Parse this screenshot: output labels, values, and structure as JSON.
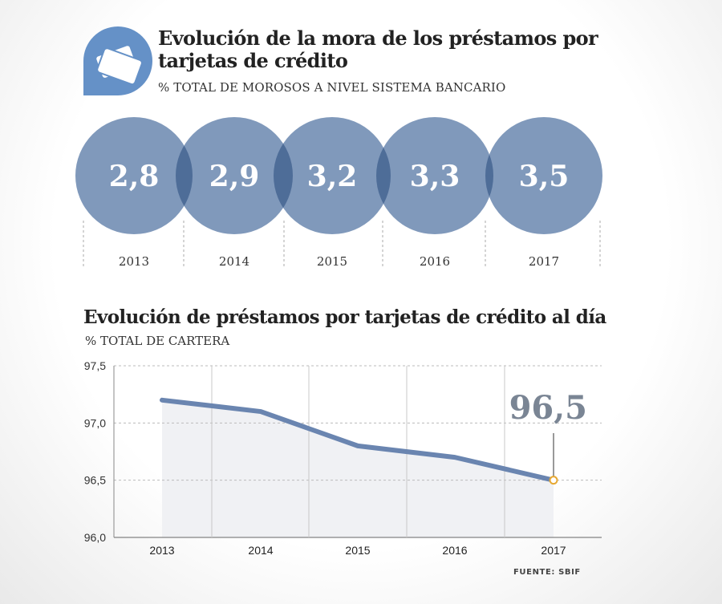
{
  "header": {
    "icon": "credit-cards-icon",
    "title": "Evolución de la mora de los préstamos por tarjetas de crédito",
    "subtitle": "% TOTAL DE MOROSOS A NIVEL SISTEMA BANCARIO"
  },
  "section2": {
    "title": "Evolución de préstamos por tarjetas de crédito al día",
    "subtitle": "% TOTAL DE CARTERA"
  },
  "source": "FUENTE: SBIF",
  "colors": {
    "circle": "#8099bb",
    "overlap": "#4e6d98",
    "line": "#6a85b0",
    "area": "#f0f1f4",
    "highlight": "#e6a833",
    "big_label": "#7a8594"
  },
  "chart_data": [
    {
      "type": "bubble",
      "categories": [
        "2013",
        "2014",
        "2015",
        "2016",
        "2017"
      ],
      "values": [
        2.8,
        2.9,
        3.2,
        3.3,
        3.5
      ],
      "value_labels": [
        "2,8",
        "2,9",
        "3,2",
        "3,3",
        "3,5"
      ]
    },
    {
      "type": "area",
      "x": [
        "2013",
        "2014",
        "2015",
        "2016",
        "2017"
      ],
      "y": [
        97.2,
        97.1,
        96.8,
        96.7,
        96.5
      ],
      "ylim": [
        96.0,
        97.5
      ],
      "yticks": [
        96.0,
        96.5,
        97.0,
        97.5
      ],
      "ytick_labels": [
        "96,0",
        "96,5",
        "97,0",
        "97,5"
      ],
      "highlight_label": "96,5",
      "grid": true
    }
  ]
}
